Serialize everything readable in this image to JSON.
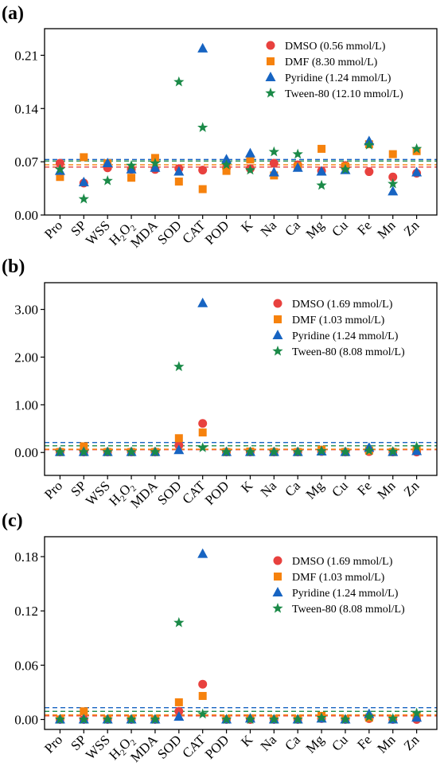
{
  "chart_data": [
    {
      "panel": "(a)",
      "type": "scatter",
      "categories": [
        "Pro",
        "SP",
        "WSS",
        "H2O2",
        "MDA",
        "SOD",
        "CAT",
        "POD",
        "K",
        "Na",
        "Ca",
        "Mg",
        "Cu",
        "Fe",
        "Mn",
        "Zn"
      ],
      "ylim": [
        0,
        0.245
      ],
      "yticks": [
        "0.00",
        "0.07",
        "0.14",
        "0.21"
      ],
      "ytick_values": [
        0,
        0.07,
        0.14,
        0.21
      ],
      "legend_position": "top-right",
      "series": [
        {
          "name": "DMSO (0.56 mmol/L)",
          "marker": "circle",
          "color": "#e8413e",
          "values": [
            0.068,
            0.042,
            0.062,
            0.06,
            0.06,
            0.061,
            0.059,
            0.062,
            0.061,
            0.068,
            0.066,
            0.058,
            0.065,
            0.057,
            0.05,
            0.055
          ]
        },
        {
          "name": "DMF (8.30 mmol/L)",
          "marker": "square",
          "color": "#f6820d",
          "values": [
            0.05,
            0.076,
            0.068,
            0.049,
            0.075,
            0.044,
            0.034,
            0.058,
            0.073,
            0.052,
            0.064,
            0.087,
            0.064,
            0.093,
            0.08,
            0.084
          ]
        },
        {
          "name": "Pyridine (1.24 mmol/L)",
          "marker": "triangle",
          "color": "#1764c2",
          "values": [
            0.058,
            0.043,
            0.068,
            0.06,
            0.062,
            0.057,
            0.219,
            0.073,
            0.081,
            0.056,
            0.062,
            0.057,
            0.059,
            0.097,
            0.031,
            0.056
          ]
        },
        {
          "name": "Tween-80 (12.10 mmol/L)",
          "marker": "star",
          "color": "#1b8a48",
          "values": [
            0.06,
            0.021,
            0.045,
            0.065,
            0.068,
            0.175,
            0.115,
            0.066,
            0.059,
            0.083,
            0.08,
            0.039,
            0.06,
            0.092,
            0.041,
            0.087
          ]
        }
      ],
      "reference_lines": [
        {
          "color": "#e8413e",
          "value": 0.063
        },
        {
          "color": "#f6820d",
          "value": 0.066
        },
        {
          "color": "#1764c2",
          "value": 0.073
        },
        {
          "color": "#1b8a48",
          "value": 0.071
        }
      ]
    },
    {
      "panel": "(b)",
      "type": "scatter",
      "categories": [
        "Pro",
        "SP",
        "WSS",
        "H2O2",
        "MDA",
        "SOD",
        "CAT",
        "POD",
        "K",
        "Na",
        "Ca",
        "Mg",
        "Cu",
        "Fe",
        "Mn",
        "Zn"
      ],
      "ylim": [
        -0.48,
        3.56
      ],
      "yticks": [
        "0.00",
        "1.00",
        "2.00",
        "3.00"
      ],
      "ytick_values": [
        0,
        1,
        2,
        3
      ],
      "legend_position": "top-right",
      "series": [
        {
          "name": "DMSO (1.69 mmol/L)",
          "marker": "circle",
          "color": "#e8413e",
          "values": [
            0.01,
            0.01,
            0.01,
            0.01,
            0.01,
            0.15,
            0.61,
            0.01,
            0.01,
            0.01,
            0.01,
            0.02,
            0.01,
            0.02,
            0.01,
            0.01
          ]
        },
        {
          "name": "DMF (1.03 mmol/L)",
          "marker": "square",
          "color": "#f6820d",
          "values": [
            0.01,
            0.13,
            0.01,
            0.01,
            0.01,
            0.3,
            0.42,
            0.01,
            0.02,
            0.01,
            0.01,
            0.06,
            0.01,
            0.04,
            0.01,
            0.05
          ]
        },
        {
          "name": "Pyridine (1.24 mmol/L)",
          "marker": "triangle",
          "color": "#1764c2",
          "values": [
            0.01,
            0.01,
            0.01,
            0.01,
            0.01,
            0.05,
            3.13,
            0.01,
            0.01,
            0.01,
            0.01,
            0.02,
            0.01,
            0.1,
            0.01,
            0.03
          ]
        },
        {
          "name": "Tween-80 (8.08 mmol/L)",
          "marker": "star",
          "color": "#1b8a48",
          "values": [
            0.01,
            0.01,
            0.01,
            0.01,
            0.01,
            1.8,
            0.1,
            0.01,
            0.01,
            0.01,
            0.01,
            0.03,
            0.01,
            0.04,
            0.02,
            0.12
          ]
        }
      ],
      "reference_lines": [
        {
          "color": "#e8413e",
          "value": 0.06
        },
        {
          "color": "#f6820d",
          "value": 0.07
        },
        {
          "color": "#1764c2",
          "value": 0.21
        },
        {
          "color": "#1b8a48",
          "value": 0.14
        }
      ]
    },
    {
      "panel": "(c)",
      "type": "scatter",
      "categories": [
        "Pro",
        "SP",
        "WSS",
        "H2O2",
        "MDA",
        "SOD",
        "CAT",
        "POD",
        "K",
        "Na",
        "Ca",
        "Mg",
        "Cu",
        "Fe",
        "Mn",
        "Zn"
      ],
      "ylim": [
        -0.011,
        0.202
      ],
      "yticks": [
        "0.00",
        "0.06",
        "0.12",
        "0.18"
      ],
      "ytick_values": [
        0,
        0.06,
        0.12,
        0.18
      ],
      "legend_position": "top-right",
      "series": [
        {
          "name": "DMSO (1.69 mmol/L)",
          "marker": "circle",
          "color": "#e8413e",
          "values": [
            0.0,
            0.0,
            0.0,
            0.0,
            0.0,
            0.009,
            0.039,
            0.0,
            0.0,
            0.0,
            0.0,
            0.001,
            0.0,
            0.001,
            0.0,
            0.0
          ]
        },
        {
          "name": "DMF (1.03 mmol/L)",
          "marker": "square",
          "color": "#f6820d",
          "values": [
            0.0,
            0.009,
            0.0,
            0.0,
            0.0,
            0.019,
            0.026,
            0.0,
            0.001,
            0.0,
            0.0,
            0.004,
            0.0,
            0.002,
            0.0,
            0.003
          ]
        },
        {
          "name": "Pyridine (1.24 mmol/L)",
          "marker": "triangle",
          "color": "#1764c2",
          "values": [
            0.0,
            0.0,
            0.0,
            0.0,
            0.0,
            0.003,
            0.183,
            0.0,
            0.001,
            0.0,
            0.0,
            0.001,
            0.0,
            0.006,
            0.0,
            0.002
          ]
        },
        {
          "name": "Tween-80 (8.08 mmol/L)",
          "marker": "star",
          "color": "#1b8a48",
          "values": [
            0.0,
            0.0,
            0.0,
            0.0,
            0.0,
            0.107,
            0.006,
            0.0,
            0.0,
            0.0,
            0.0,
            0.002,
            0.0,
            0.003,
            0.001,
            0.007
          ]
        }
      ],
      "reference_lines": [
        {
          "color": "#e8413e",
          "value": 0.004
        },
        {
          "color": "#f6820d",
          "value": 0.005
        },
        {
          "color": "#1764c2",
          "value": 0.013
        },
        {
          "color": "#1b8a48",
          "value": 0.009
        }
      ]
    }
  ]
}
